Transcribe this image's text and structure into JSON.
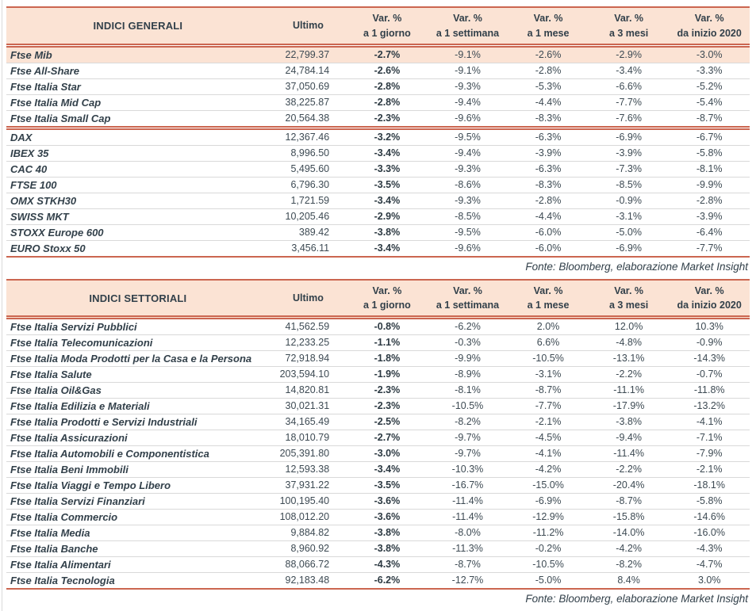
{
  "colors": {
    "accent_border": "#CB6650",
    "header_background": "#FBE3D4",
    "highlight_row_background": "#FBE3D4",
    "text": "#32404A"
  },
  "tables": [
    {
      "title": "INDICI GENERALI",
      "columns": [
        {
          "line1": "Ultimo",
          "line2": ""
        },
        {
          "line1": "Var. %",
          "line2": "a 1 giorno"
        },
        {
          "line1": "Var. %",
          "line2": "a 1 settimana"
        },
        {
          "line1": "Var. %",
          "line2": "a 1 mese"
        },
        {
          "line1": "Var. %",
          "line2": "a 3 mesi"
        },
        {
          "line1": "Var. %",
          "line2": "da inizio 2020"
        }
      ],
      "sections": [
        {
          "rows": [
            {
              "name": "Ftse Mib",
              "ultimo": "22,799.37",
              "values": [
                "-2.7%",
                "-9.1%",
                "-2.6%",
                "-2.9%",
                "-3.0%"
              ],
              "highlight": true
            },
            {
              "name": "Ftse All-Share",
              "ultimo": "24,784.14",
              "values": [
                "-2.6%",
                "-9.1%",
                "-2.8%",
                "-3.4%",
                "-3.3%"
              ],
              "highlight": false
            },
            {
              "name": "Ftse Italia Star",
              "ultimo": "37,050.69",
              "values": [
                "-2.8%",
                "-9.3%",
                "-5.3%",
                "-6.6%",
                "-5.2%"
              ],
              "highlight": false
            },
            {
              "name": "Ftse Italia Mid Cap",
              "ultimo": "38,225.87",
              "values": [
                "-2.8%",
                "-9.4%",
                "-4.4%",
                "-7.7%",
                "-5.4%"
              ],
              "highlight": false
            },
            {
              "name": "Ftse Italia Small Cap",
              "ultimo": "20,564.38",
              "values": [
                "-2.3%",
                "-9.6%",
                "-8.3%",
                "-7.6%",
                "-8.7%"
              ],
              "highlight": false
            }
          ]
        },
        {
          "rows": [
            {
              "name": "DAX",
              "ultimo": "12,367.46",
              "values": [
                "-3.2%",
                "-9.5%",
                "-6.3%",
                "-6.9%",
                "-6.7%"
              ],
              "highlight": false
            },
            {
              "name": "IBEX 35",
              "ultimo": "8,996.50",
              "values": [
                "-3.4%",
                "-9.4%",
                "-3.9%",
                "-3.9%",
                "-5.8%"
              ],
              "highlight": false
            },
            {
              "name": "CAC 40",
              "ultimo": "5,495.60",
              "values": [
                "-3.3%",
                "-9.3%",
                "-6.3%",
                "-7.3%",
                "-8.1%"
              ],
              "highlight": false
            },
            {
              "name": "FTSE 100",
              "ultimo": "6,796.30",
              "values": [
                "-3.5%",
                "-8.6%",
                "-8.3%",
                "-8.5%",
                "-9.9%"
              ],
              "highlight": false
            },
            {
              "name": "OMX STKH30",
              "ultimo": "1,721.59",
              "values": [
                "-3.4%",
                "-9.3%",
                "-2.8%",
                "-0.9%",
                "-2.8%"
              ],
              "highlight": false
            },
            {
              "name": "SWISS MKT",
              "ultimo": "10,205.46",
              "values": [
                "-2.9%",
                "-8.5%",
                "-4.4%",
                "-3.1%",
                "-3.9%"
              ],
              "highlight": false
            },
            {
              "name": "STOXX Europe 600",
              "ultimo": "389.42",
              "values": [
                "-3.8%",
                "-9.5%",
                "-6.0%",
                "-5.0%",
                "-6.4%"
              ],
              "highlight": false
            },
            {
              "name": "EURO Stoxx 50",
              "ultimo": "3,456.11",
              "values": [
                "-3.4%",
                "-9.6%",
                "-6.0%",
                "-6.9%",
                "-7.7%"
              ],
              "highlight": false
            }
          ]
        }
      ],
      "source": "Fonte: Bloomberg, elaborazione Market Insight"
    },
    {
      "title": "INDICI SETTORIALI",
      "columns": [
        {
          "line1": "Ultimo",
          "line2": ""
        },
        {
          "line1": "Var. %",
          "line2": "a 1 giorno"
        },
        {
          "line1": "Var. %",
          "line2": "a 1 settimana"
        },
        {
          "line1": "Var. %",
          "line2": "a 1 mese"
        },
        {
          "line1": "Var. %",
          "line2": "a 3 mesi"
        },
        {
          "line1": "Var. %",
          "line2": "da inizio 2020"
        }
      ],
      "sections": [
        {
          "rows": [
            {
              "name": "Ftse Italia Servizi Pubblici",
              "ultimo": "41,562.59",
              "values": [
                "-0.8%",
                "-6.2%",
                "2.0%",
                "12.0%",
                "10.3%"
              ],
              "highlight": false
            },
            {
              "name": "Ftse Italia Telecomunicazioni",
              "ultimo": "12,233.25",
              "values": [
                "-1.1%",
                "-0.3%",
                "6.6%",
                "-4.8%",
                "-0.9%"
              ],
              "highlight": false
            },
            {
              "name": "Ftse Italia Moda Prodotti per la Casa e la Persona",
              "ultimo": "72,918.94",
              "values": [
                "-1.8%",
                "-9.9%",
                "-10.5%",
                "-13.1%",
                "-14.3%"
              ],
              "highlight": false
            },
            {
              "name": "Ftse Italia Salute",
              "ultimo": "203,594.10",
              "values": [
                "-1.9%",
                "-8.9%",
                "-3.1%",
                "-2.2%",
                "-0.7%"
              ],
              "highlight": false
            },
            {
              "name": "Ftse Italia Oil&Gas",
              "ultimo": "14,820.81",
              "values": [
                "-2.3%",
                "-8.1%",
                "-8.7%",
                "-11.1%",
                "-11.8%"
              ],
              "highlight": false
            },
            {
              "name": "Ftse Italia Edilizia e Materiali",
              "ultimo": "30,021.31",
              "values": [
                "-2.3%",
                "-10.5%",
                "-7.7%",
                "-17.9%",
                "-13.2%"
              ],
              "highlight": false
            },
            {
              "name": "Ftse Italia Prodotti e Servizi Industriali",
              "ultimo": "34,165.49",
              "values": [
                "-2.5%",
                "-8.2%",
                "-2.1%",
                "-3.8%",
                "-4.1%"
              ],
              "highlight": false
            },
            {
              "name": "Ftse Italia Assicurazioni",
              "ultimo": "18,010.79",
              "values": [
                "-2.7%",
                "-9.7%",
                "-4.5%",
                "-9.4%",
                "-7.1%"
              ],
              "highlight": false
            },
            {
              "name": "Ftse Italia Automobili e Componentistica",
              "ultimo": "205,391.80",
              "values": [
                "-3.0%",
                "-9.7%",
                "-4.1%",
                "-11.4%",
                "-7.9%"
              ],
              "highlight": false
            },
            {
              "name": "Ftse Italia Beni Immobili",
              "ultimo": "12,593.38",
              "values": [
                "-3.4%",
                "-10.3%",
                "-4.2%",
                "-2.2%",
                "-2.1%"
              ],
              "highlight": false
            },
            {
              "name": "Ftse Italia Viaggi e Tempo Libero",
              "ultimo": "37,931.22",
              "values": [
                "-3.5%",
                "-16.7%",
                "-15.0%",
                "-20.4%",
                "-18.1%"
              ],
              "highlight": false
            },
            {
              "name": "Ftse Italia Servizi Finanziari",
              "ultimo": "100,195.40",
              "values": [
                "-3.6%",
                "-11.4%",
                "-6.9%",
                "-8.7%",
                "-5.8%"
              ],
              "highlight": false
            },
            {
              "name": "Ftse Italia Commercio",
              "ultimo": "108,012.20",
              "values": [
                "-3.6%",
                "-11.4%",
                "-12.9%",
                "-15.8%",
                "-14.6%"
              ],
              "highlight": false
            },
            {
              "name": "Ftse Italia Media",
              "ultimo": "9,884.82",
              "values": [
                "-3.8%",
                "-8.0%",
                "-11.2%",
                "-14.0%",
                "-16.0%"
              ],
              "highlight": false
            },
            {
              "name": "Ftse Italia Banche",
              "ultimo": "8,960.92",
              "values": [
                "-3.8%",
                "-11.3%",
                "-0.2%",
                "-4.2%",
                "-4.3%"
              ],
              "highlight": false
            },
            {
              "name": "Ftse Italia Alimentari",
              "ultimo": "88,066.72",
              "values": [
                "-4.3%",
                "-8.7%",
                "-10.5%",
                "-8.2%",
                "-4.7%"
              ],
              "highlight": false
            },
            {
              "name": "Ftse Italia Tecnologia",
              "ultimo": "92,183.48",
              "values": [
                "-6.2%",
                "-12.7%",
                "-5.0%",
                "8.4%",
                "3.0%"
              ],
              "highlight": false
            }
          ]
        }
      ],
      "source": "Fonte: Bloomberg, elaborazione Market Insight"
    }
  ]
}
